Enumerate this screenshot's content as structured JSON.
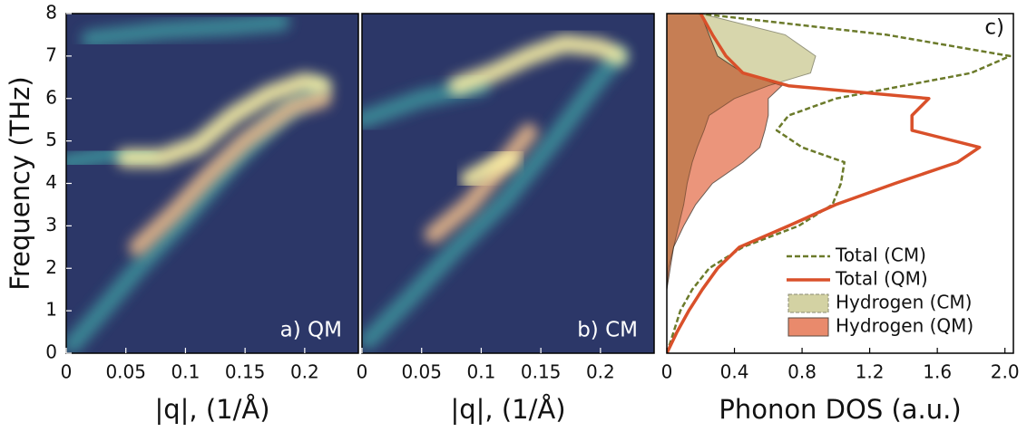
{
  "chart_data": [
    {
      "type": "heatmap",
      "label": "a) QM",
      "xlabel": "|q|, (1/Å)",
      "ylabel": "Frequency (THz)",
      "xlim": [
        0,
        0.245
      ],
      "xticks": [
        0,
        0.05,
        0.1,
        0.15,
        0.2
      ],
      "ylim": [
        0,
        8
      ],
      "yticks": [
        0,
        1,
        2,
        3,
        4,
        5,
        6,
        7,
        8
      ],
      "background": "#2c3768",
      "series": [
        {
          "color": "#3d8e9a",
          "x": [
            0.005,
            0.03,
            0.06,
            0.1,
            0.14,
            0.18,
            0.21
          ],
          "values": [
            0.2,
            1.0,
            2.0,
            3.2,
            4.5,
            5.6,
            6.2
          ]
        },
        {
          "color": "#3d8e9a",
          "x": [
            0,
            0.04,
            0.07
          ],
          "values": [
            4.5,
            4.7,
            4.7
          ]
        },
        {
          "color": "#3d8e9a",
          "x": [
            0.02,
            0.08,
            0.14,
            0.18
          ],
          "values": [
            7.4,
            7.6,
            7.7,
            7.8
          ]
        },
        {
          "color": "#e8b88a",
          "x": [
            0.06,
            0.09,
            0.12,
            0.15,
            0.19,
            0.215
          ],
          "values": [
            2.5,
            3.3,
            4.2,
            5.0,
            5.8,
            6.0
          ]
        },
        {
          "color": "#fdf3a6",
          "x": [
            0.05,
            0.08,
            0.11,
            0.14,
            0.17,
            0.2,
            0.215
          ],
          "values": [
            4.6,
            4.6,
            4.9,
            5.6,
            6.1,
            6.4,
            6.3
          ]
        }
      ]
    },
    {
      "type": "heatmap",
      "label": "b) CM",
      "xlabel": "|q|, (1/Å)",
      "xlim": [
        0,
        0.245
      ],
      "xticks": [
        0,
        0.05,
        0.1,
        0.15,
        0.2
      ],
      "ylim": [
        0,
        8
      ],
      "background": "#2c3768",
      "series": [
        {
          "color": "#3d8e9a",
          "x": [
            0.005,
            0.04,
            0.08,
            0.12,
            0.16,
            0.2,
            0.215
          ],
          "values": [
            0.3,
            1.3,
            2.5,
            3.6,
            5.0,
            6.5,
            7.0
          ]
        },
        {
          "color": "#3d8e9a",
          "x": [
            0,
            0.05,
            0.1
          ],
          "values": [
            5.5,
            6.0,
            6.3
          ]
        },
        {
          "color": "#e8b88a",
          "x": [
            0.06,
            0.09,
            0.12,
            0.14
          ],
          "values": [
            2.8,
            3.5,
            4.5,
            5.2
          ]
        },
        {
          "color": "#fdf3a6",
          "x": [
            0.09,
            0.11,
            0.125
          ],
          "values": [
            4.1,
            4.4,
            4.6
          ]
        },
        {
          "color": "#fdf3a6",
          "x": [
            0.08,
            0.11,
            0.14,
            0.17,
            0.2,
            0.215
          ],
          "values": [
            6.3,
            6.6,
            7.0,
            7.3,
            7.2,
            7.0
          ]
        }
      ]
    },
    {
      "type": "line",
      "label": "c)",
      "xlabel": "Phonon DOS (a.u.)",
      "xlim": [
        0,
        2.05
      ],
      "xticks": [
        0,
        0.4,
        0.8,
        1.2,
        1.6,
        {
          "value": 2,
          "label": "2.0"
        }
      ],
      "ylim": [
        0,
        8
      ],
      "legend": "lower right",
      "y": [
        0,
        0.5,
        1,
        1.5,
        2,
        2.5,
        3,
        3.5,
        4,
        4.5,
        4.85,
        5.25,
        5.6,
        6,
        6.3,
        6.6,
        7,
        7.5,
        8
      ],
      "series": [
        {
          "name": "Total (CM)",
          "style": "dashed",
          "color": "#6b7a2a",
          "values": [
            0,
            0.04,
            0.08,
            0.15,
            0.25,
            0.45,
            0.78,
            0.98,
            1.03,
            1.05,
            0.8,
            0.65,
            0.72,
            1.0,
            1.4,
            1.8,
            2.03,
            1.3,
            0.19
          ]
        },
        {
          "name": "Total (QM)",
          "style": "solid",
          "color": "#d9502a",
          "values": [
            0,
            0.06,
            0.13,
            0.21,
            0.3,
            0.43,
            0.72,
            1.0,
            1.35,
            1.72,
            1.85,
            1.45,
            1.45,
            1.55,
            0.72,
            0.45,
            0.35,
            0.27,
            0.2
          ]
        },
        {
          "name": "Hydrogen (CM)",
          "style": "fill",
          "color": "#d3d2a3",
          "edge": "#8a8a70",
          "values": [
            0,
            0,
            0,
            0,
            0.01,
            0.04,
            0.07,
            0.1,
            0.12,
            0.15,
            0.18,
            0.22,
            0.25,
            0.4,
            0.6,
            0.85,
            0.88,
            0.7,
            0.2
          ]
        },
        {
          "name": "Hydrogen (QM)",
          "style": "fill",
          "color": "#e98a6c",
          "edge": "#5a4a40",
          "values": [
            0,
            0,
            0,
            0,
            0.02,
            0.04,
            0.1,
            0.17,
            0.27,
            0.45,
            0.55,
            0.58,
            0.6,
            0.6,
            0.68,
            0.45,
            0.3,
            0.25,
            0.2
          ]
        }
      ]
    }
  ]
}
